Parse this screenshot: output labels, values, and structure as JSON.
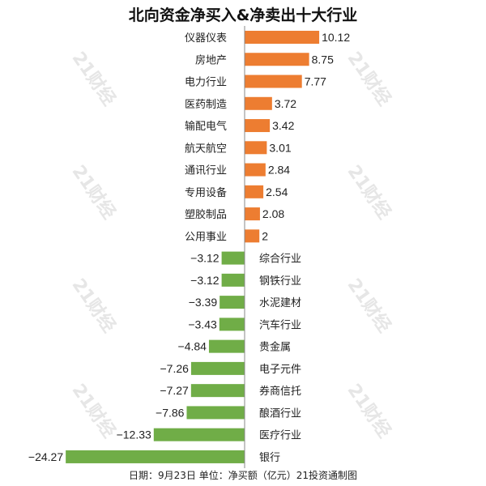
{
  "chart_data": {
    "type": "bar",
    "orientation": "horizontal",
    "title": "北向资金净买入&净卖出十大行业",
    "footer": "日期：9月23日 单位：净买额（亿元）21投资通制图",
    "categories": [
      "仪器仪表",
      "房地产",
      "电力行业",
      "医药制造",
      "输配电气",
      "航天航空",
      "通讯行业",
      "专用设备",
      "塑胶制品",
      "公用事业",
      "综合行业",
      "钢铁行业",
      "水泥建材",
      "汽车行业",
      "贵金属",
      "电子元件",
      "券商信托",
      "酿酒行业",
      "医疗行业",
      "银行"
    ],
    "values": [
      10.12,
      8.75,
      7.77,
      3.72,
      3.42,
      3.01,
      2.84,
      2.54,
      2.08,
      2,
      -3.12,
      -3.12,
      -3.39,
      -3.43,
      -4.84,
      -7.26,
      -7.27,
      -7.86,
      -12.33,
      -24.27
    ],
    "value_labels": [
      "10.12",
      "8.75",
      "7.77",
      "3.72",
      "3.42",
      "3.01",
      "2.84",
      "2.54",
      "2.08",
      "2",
      "−3.12",
      "−3.12",
      "−3.39",
      "−3.43",
      "−4.84",
      "−7.26",
      "−7.27",
      "−7.86",
      "−12.33",
      "−24.27"
    ],
    "colors": {
      "positive": "#ed7d31",
      "negative": "#70ad47"
    },
    "grid": false
  },
  "watermark": "21财经"
}
